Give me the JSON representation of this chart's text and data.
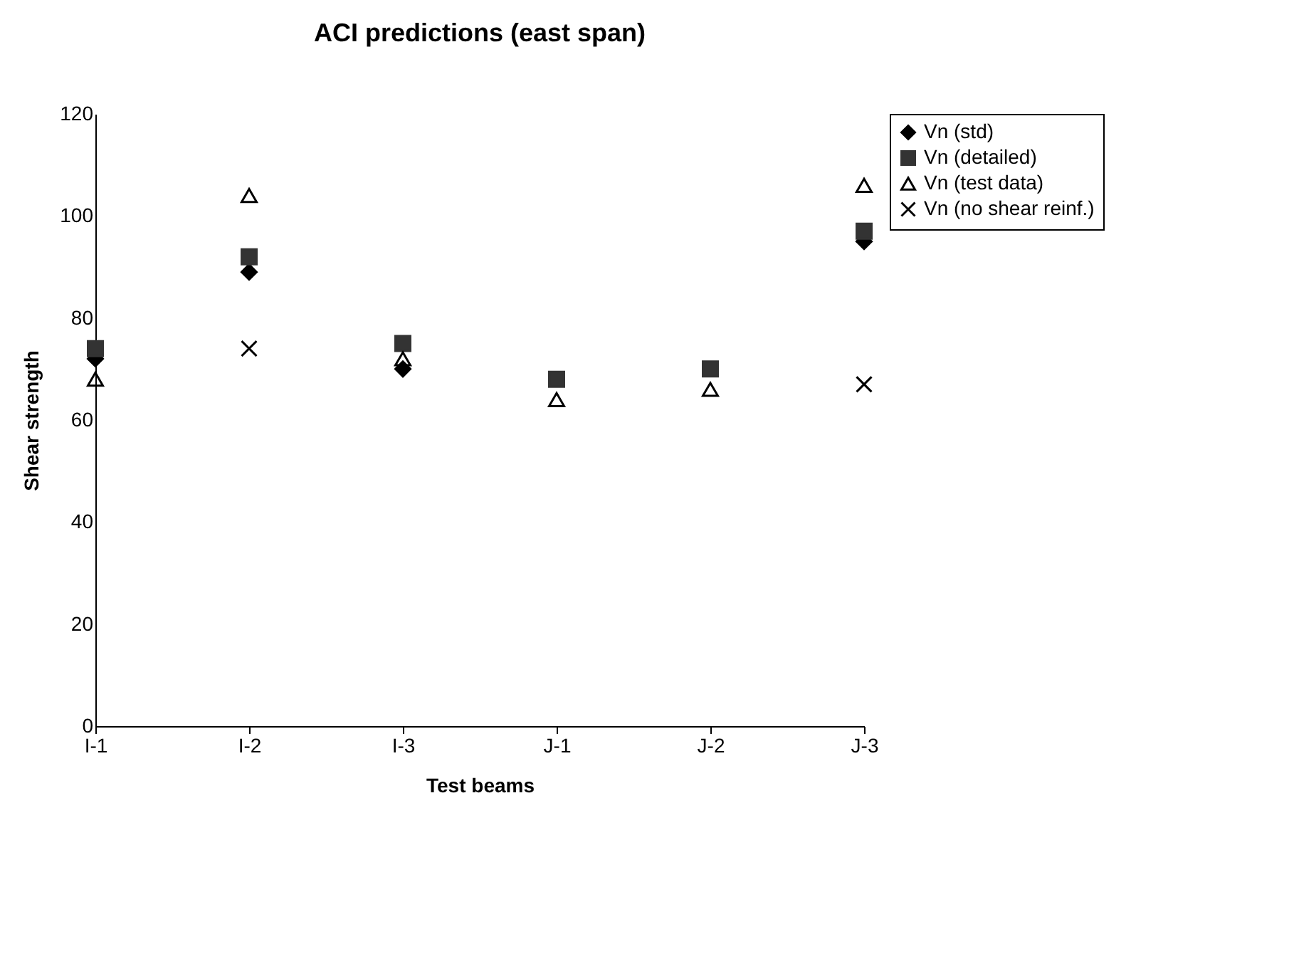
{
  "chart_data": {
    "type": "scatter",
    "title": "ACI predictions (east span)",
    "xlabel": "Test beams",
    "ylabel": "Shear strength",
    "categories": [
      "I-1",
      "I-2",
      "I-3",
      "J-1",
      "J-2",
      "J-3"
    ],
    "series": [
      {
        "name": "Vn (std)",
        "color": "#000000",
        "marker": "diamond",
        "values": [
          72,
          89,
          70,
          null,
          null,
          95
        ]
      },
      {
        "name": "Vn (detailed)",
        "color": "#333333",
        "marker": "square",
        "values": [
          74,
          92,
          75,
          68,
          70,
          97
        ]
      },
      {
        "name": "Vn (test data)",
        "color": "#000000",
        "marker": "triangle",
        "values": [
          68,
          104,
          72,
          64,
          66,
          106
        ]
      },
      {
        "name": "Vn (no shear reinf.)",
        "color": "#000000",
        "marker": "cross",
        "values": [
          null,
          74,
          null,
          null,
          null,
          67
        ]
      }
    ],
    "ylim": [
      0,
      120
    ],
    "yticks": [
      0,
      20,
      40,
      60,
      80,
      100,
      120
    ],
    "grid": false,
    "legend": "right"
  }
}
